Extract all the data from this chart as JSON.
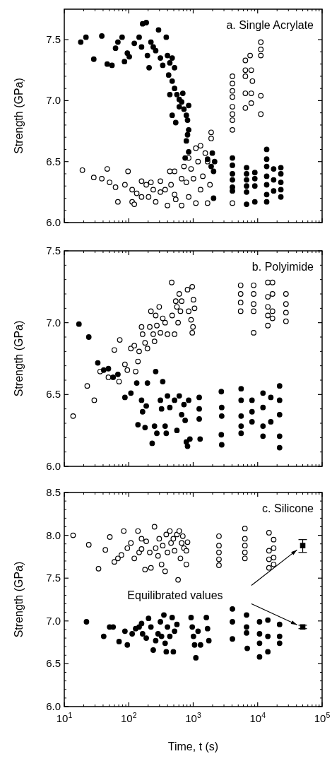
{
  "chart_data": [
    {
      "type": "scatter",
      "title": "a. Single Acrylate",
      "ylabel": "Strength (GPa)",
      "log": "x",
      "marker": "circle",
      "tick_labels": "y",
      "xlim": [
        10,
        100000
      ],
      "xticks": [
        {
          "value": 10,
          "label": null
        },
        {
          "value": 100,
          "label": null
        },
        {
          "value": 1000,
          "label": null
        },
        {
          "value": 10000,
          "label": null
        },
        {
          "value": 100000,
          "label": null
        }
      ],
      "ylim": [
        6.0,
        7.75
      ],
      "yticks": [
        {
          "value": 6,
          "label": "6.0"
        },
        {
          "value": 6.5,
          "label": "6.5"
        },
        {
          "value": 7,
          "label": "7.0"
        },
        {
          "value": 7.5,
          "label": "7.5"
        }
      ],
      "series": [
        {
          "color": "#ffffff",
          "x": [
            19.1,
            28.7,
            38.2,
            46.4,
            50.5,
            62.4,
            67.9,
            87.3,
            97.5,
            113,
            122,
            113,
            133,
            158,
            158,
            187,
            203,
            221,
            240,
            262,
            310,
            310,
            367,
            399,
            434,
            453,
            514,
            536,
            514,
            662,
            662,
            719,
            783,
            851,
            851,
            927,
            1010,
            1100,
            1100,
            1190,
            1300,
            1300,
            1410,
            1540,
            1670,
            1670,
            1820,
            1900,
            1900,
            4060,
            4060,
            4060,
            4060,
            4060,
            4060,
            4060,
            4060,
            4060,
            6450,
            6450,
            6450,
            6450,
            6450,
            7640,
            7960,
            8300,
            7960,
            7960,
            11200,
            11200,
            11200,
            11200,
            11200
          ],
          "values": [
            6.43,
            6.37,
            6.36,
            6.44,
            6.33,
            6.29,
            6.17,
            6.31,
            6.42,
            6.17,
            6.15,
            6.27,
            6.24,
            6.34,
            6.21,
            6.31,
            6.21,
            6.33,
            6.27,
            6.17,
            6.34,
            6.25,
            6.27,
            6.14,
            6.42,
            6.31,
            6.23,
            6.19,
            6.42,
            6.14,
            6.36,
            6.46,
            6.33,
            6.21,
            6.53,
            6.44,
            6.36,
            6.61,
            6.16,
            6.5,
            6.63,
            6.27,
            6.38,
            6.57,
            6.16,
            6.5,
            6.31,
            6.74,
            6.69,
            7.2,
            7.14,
            7.08,
            7.03,
            6.95,
            6.89,
            6.84,
            6.76,
            6.16,
            7.33,
            7.25,
            7.2,
            7.06,
            6.94,
            7.37,
            7.25,
            7.16,
            7.06,
            6.98,
            7.48,
            7.42,
            7.37,
            7.04,
            6.89
          ]
        },
        {
          "color": "#000000",
          "x": [
            18.0,
            21.7,
            28.7,
            38.2,
            46.4,
            55.0,
            62.4,
            67.9,
            78.9,
            85.9,
            95.1,
            102,
            122,
            145,
            158,
            164,
            187,
            195,
            207,
            221,
            240,
            262,
            290,
            310,
            337,
            382,
            399,
            434,
            472,
            514,
            416,
            472,
            514,
            559,
            434,
            608,
            662,
            719,
            783,
            472,
            536,
            817,
            851,
            817,
            783,
            851,
            608,
            690,
            851,
            750,
            2070,
            1980,
            2150,
            2070,
            1900,
            1670,
            4060,
            4060,
            4060,
            4060,
            4060,
            4060,
            6730,
            6730,
            6730,
            6730,
            6730,
            6730,
            9040,
            9040,
            9040,
            9040,
            13800,
            13800,
            13800,
            13800,
            13800,
            13800,
            13800,
            17700,
            17700,
            17700,
            22900,
            22900,
            22900,
            22900,
            22900
          ],
          "values": [
            7.48,
            7.52,
            7.34,
            7.53,
            7.3,
            7.29,
            7.43,
            7.48,
            7.52,
            7.32,
            7.39,
            7.36,
            7.47,
            7.52,
            7.44,
            7.63,
            7.64,
            7.37,
            7.27,
            7.48,
            7.44,
            7.41,
            7.58,
            7.35,
            7.29,
            7.52,
            7.37,
            7.31,
            7.35,
            7.27,
            7.21,
            7.16,
            7.1,
            7.05,
            7.05,
            7.01,
            6.99,
            6.93,
            6.88,
            6.88,
            6.82,
            6.84,
            6.76,
            6.72,
            6.67,
            6.96,
            6.95,
            7.06,
            6.58,
            6.53,
            6.2,
            6.57,
            6.5,
            6.42,
            6.46,
            6.52,
            6.53,
            6.47,
            6.4,
            6.35,
            6.29,
            6.26,
            6.45,
            6.4,
            6.35,
            6.3,
            6.25,
            6.15,
            6.41,
            6.36,
            6.3,
            6.17,
            6.6,
            6.52,
            6.46,
            6.38,
            6.31,
            6.23,
            6.17,
            6.44,
            6.35,
            6.26,
            6.45,
            6.4,
            6.33,
            6.27,
            6.21
          ]
        }
      ]
    },
    {
      "type": "scatter",
      "title": "b. Polyimide",
      "ylabel": "Strength (GPa)",
      "log": "x",
      "marker": "circle",
      "tick_labels": "y",
      "xlim": [
        10,
        100000
      ],
      "xticks": [
        {
          "value": 10,
          "label": null
        },
        {
          "value": 100,
          "label": null
        },
        {
          "value": 1000,
          "label": null
        },
        {
          "value": 10000,
          "label": null
        },
        {
          "value": 100000,
          "label": null
        }
      ],
      "ylim": [
        6.0,
        7.5
      ],
      "yticks": [
        {
          "value": 6,
          "label": "6.0"
        },
        {
          "value": 6.5,
          "label": "6.5"
        },
        {
          "value": 7,
          "label": "7.0"
        },
        {
          "value": 7.5,
          "label": "7.5"
        }
      ],
      "series": [
        {
          "color": "#ffffff",
          "x": [
            13.7,
            22.7,
            29.2,
            59.8,
            72.6,
            87.3,
            95.1,
            108,
            122,
            139,
            145,
            128,
            158,
            164,
            179,
            195,
            212,
            221,
            240,
            251,
            262,
            273,
            297,
            310,
            337,
            367,
            399,
            464,
            472,
            514,
            536,
            559,
            583,
            608,
            634,
            662,
            817,
            851,
            927,
            967,
            967,
            1010,
            1050,
            992,
            36.0,
            48.4,
            70.8,
            5450,
            5450,
            5450,
            5450,
            8670,
            8670,
            8670,
            8670,
            8670,
            14400,
            14400,
            14400,
            14400,
            14400,
            17000,
            17000,
            17000,
            17000,
            27500,
            27500,
            27500,
            27500
          ],
          "values": [
            6.35,
            6.56,
            6.46,
            6.81,
            6.88,
            6.71,
            6.67,
            6.82,
            6.84,
            6.73,
            6.8,
            6.66,
            6.97,
            6.92,
            6.86,
            6.82,
            6.97,
            7.08,
            6.92,
            6.87,
            7.05,
            6.98,
            7.11,
            6.93,
            7.03,
            7.0,
            6.92,
            7.28,
            7.05,
            6.92,
            7.15,
            7.11,
            7.0,
            7.2,
            7.08,
            7.15,
            7.23,
            7.08,
            7.02,
            7.25,
            6.93,
            7.16,
            7.1,
            6.97,
            6.66,
            6.62,
            6.59,
            7.26,
            7.2,
            7.14,
            7.08,
            7.26,
            7.2,
            7.13,
            7.08,
            6.93,
            7.28,
            7.18,
            7.11,
            7.05,
            6.98,
            7.28,
            7.2,
            7.08,
            7.03,
            7.2,
            7.13,
            7.07,
            7.01
          ]
        },
        {
          "color": "#000000",
          "x": [
            16.9,
            24.0,
            33.1,
            40.9,
            48.4,
            57.3,
            67.9,
            87.3,
            108,
            133,
            139,
            158,
            164,
            179,
            187,
            195,
            231,
            251,
            262,
            273,
            310,
            323,
            337,
            367,
            382,
            399,
            434,
            514,
            559,
            608,
            662,
            719,
            750,
            783,
            817,
            851,
            889,
            1240,
            1240,
            1240,
            1280,
            2730,
            2730,
            2770,
            2770,
            2770,
            5540,
            5540,
            5540,
            5540,
            5540,
            8170,
            8170,
            8170,
            12100,
            12100,
            12100,
            12100,
            16000,
            16000,
            21900,
            21900,
            21900,
            21900,
            21900
          ],
          "values": [
            6.99,
            6.9,
            6.72,
            6.67,
            6.68,
            6.62,
            6.64,
            6.48,
            6.51,
            6.58,
            6.29,
            6.46,
            6.38,
            6.27,
            6.42,
            6.58,
            6.16,
            6.28,
            6.66,
            6.23,
            6.46,
            6.4,
            6.59,
            6.28,
            6.23,
            6.49,
            6.41,
            6.46,
            6.25,
            6.49,
            6.36,
            6.43,
            6.32,
            6.17,
            6.14,
            6.46,
            6.19,
            6.48,
            6.4,
            6.33,
            6.19,
            6.52,
            6.22,
            6.41,
            6.35,
            6.15,
            6.54,
            6.46,
            6.35,
            6.28,
            6.23,
            6.46,
            6.38,
            6.31,
            6.51,
            6.41,
            6.28,
            6.21,
            6.48,
            6.31,
            6.56,
            6.46,
            6.36,
            6.21,
            6.13
          ]
        }
      ]
    },
    {
      "type": "scatter",
      "title": "c. Silicone",
      "ylabel": "Strength (GPa)",
      "xlabel": "Time, t (s)",
      "log": "x",
      "marker": "circle",
      "xlim": [
        10,
        100000
      ],
      "xticks": [
        {
          "value": 10,
          "label": "10$^{1}$"
        },
        {
          "value": 100,
          "label": "10$^{2}$"
        },
        {
          "value": 1000,
          "label": "10$^{3}$"
        },
        {
          "value": 10000,
          "label": "10$^{4}$"
        },
        {
          "value": 100000,
          "label": "10$^{5}$"
        }
      ],
      "ylim": [
        6.0,
        8.5
      ],
      "yticks": [
        {
          "value": 6,
          "label": "6.0"
        },
        {
          "value": 6.5,
          "label": "6.5"
        },
        {
          "value": 7,
          "label": "7.0"
        },
        {
          "value": 7.5,
          "label": "7.5"
        },
        {
          "value": 8,
          "label": "8.0"
        },
        {
          "value": 8.5,
          "label": "8.5"
        }
      ],
      "series": [
        {
          "color": "#ffffff",
          "x": [
            13.7,
            24.0,
            34.0,
            43.4,
            50.9,
            59.8,
            67.9,
            77.0,
            83.7,
            95.1,
            108,
            122,
            139,
            145,
            158,
            158,
            179,
            187,
            212,
            221,
            251,
            262,
            285,
            297,
            323,
            337,
            367,
            382,
            399,
            434,
            453,
            492,
            514,
            559,
            583,
            608,
            634,
            662,
            690,
            719,
            783,
            783,
            817,
            2510,
            2510,
            2510,
            2510,
            2510,
            6340,
            6340,
            6340,
            6340,
            6340,
            15000,
            15000,
            15000,
            15000,
            17700,
            17700,
            17700,
            17700
          ],
          "values": [
            8.0,
            7.89,
            7.61,
            7.83,
            7.98,
            7.69,
            7.73,
            7.77,
            8.05,
            7.85,
            7.91,
            7.73,
            8.05,
            7.8,
            7.96,
            7.84,
            7.6,
            7.93,
            7.8,
            7.62,
            8.1,
            7.85,
            7.76,
            7.96,
            7.66,
            7.88,
            7.58,
            8.01,
            7.8,
            8.05,
            7.91,
            7.96,
            7.82,
            8.01,
            7.48,
            8.05,
            7.73,
            7.91,
            7.99,
            7.85,
            7.82,
            7.66,
            7.92,
            7.99,
            7.88,
            7.8,
            7.72,
            7.65,
            8.08,
            7.96,
            7.88,
            7.8,
            7.73,
            8.03,
            7.82,
            7.72,
            7.62,
            7.95,
            7.85,
            7.74,
            7.66
          ]
        },
        {
          "color": "#000000",
          "x": [
            22.1,
            40.9,
            50.5,
            57.3,
            70.8,
            95.1,
            87.3,
            113,
            128,
            145,
            158,
            164,
            187,
            203,
            221,
            240,
            262,
            285,
            310,
            323,
            351,
            367,
            382,
            399,
            434,
            472,
            492,
            514,
            559,
            927,
            967,
            1010,
            1050,
            1100,
            1190,
            1300,
            1600,
            1670,
            1750,
            4060,
            4060,
            4060,
            6730,
            6730,
            6730,
            6900,
            10700,
            10700,
            10700,
            10700,
            14400,
            14400,
            14400,
            21900,
            21900,
            21900
          ],
          "values": [
            6.99,
            6.82,
            6.93,
            6.93,
            6.76,
            6.72,
            6.88,
            6.85,
            6.91,
            6.93,
            6.97,
            6.85,
            6.8,
            7.03,
            6.93,
            6.66,
            6.77,
            6.85,
            6.99,
            6.82,
            7.07,
            6.74,
            6.64,
            6.93,
            6.82,
            7.04,
            6.64,
            6.88,
            6.96,
            7.04,
            6.93,
            6.82,
            6.72,
            6.57,
            6.88,
            6.72,
            7.04,
            6.91,
            6.77,
            7.14,
            6.99,
            6.79,
            7.07,
            6.93,
            6.86,
            6.68,
            6.99,
            6.85,
            6.74,
            6.58,
            7.01,
            6.82,
            6.64,
            6.96,
            6.82,
            6.74
          ]
        },
        {
          "name": "Equilibrated values",
          "color": "#000000",
          "marker": "square",
          "x": [
            50000,
            50000
          ],
          "values": [
            7.88,
            6.93
          ],
          "errors": [
            [
              7.8,
              7.95
            ],
            [
              6.91,
              6.95
            ]
          ]
        }
      ]
    }
  ]
}
